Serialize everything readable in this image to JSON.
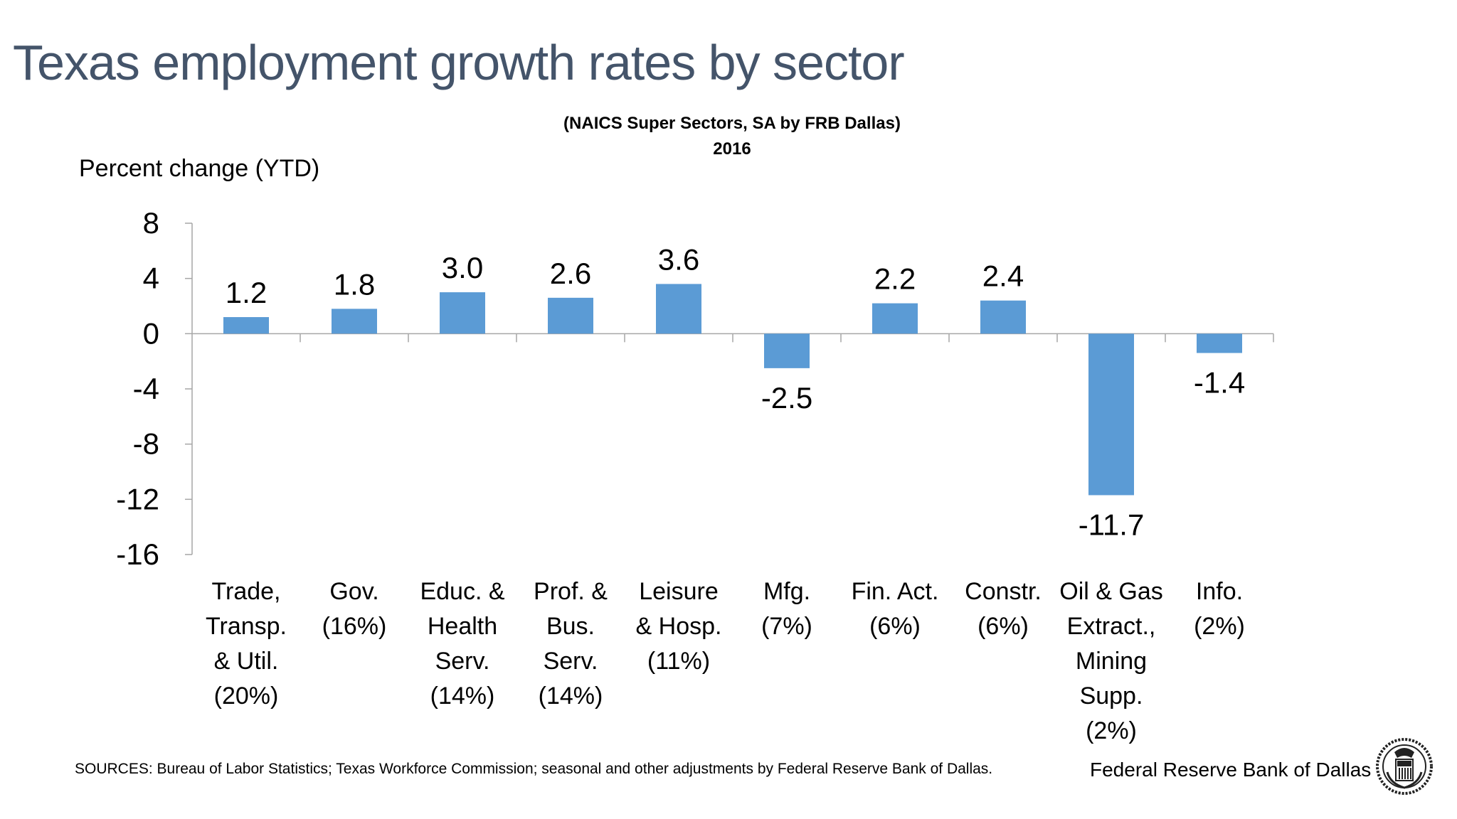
{
  "header": {
    "title": "Texas employment growth rates by sector",
    "subtitle_line1": "(NAICS Super Sectors, SA by FRB Dallas)",
    "subtitle_line2": "2016"
  },
  "chart_data": {
    "type": "bar",
    "ylabel": "Percent change (YTD)",
    "ylim": [
      -16,
      8
    ],
    "yticks": [
      8,
      4,
      0,
      -4,
      -8,
      -12,
      -16
    ],
    "grid": false,
    "legend": "none",
    "bar_color": "#5b9bd5",
    "categories": [
      [
        "Trade,",
        "Transp.",
        "& Util.",
        "(20%)"
      ],
      [
        "Gov.",
        "(16%)"
      ],
      [
        "Educ. &",
        "Health",
        "Serv.",
        "(14%)"
      ],
      [
        "Prof. &",
        "Bus.",
        "Serv.",
        "(14%)"
      ],
      [
        "Leisure",
        "& Hosp.",
        "(11%)"
      ],
      [
        "Mfg.",
        "(7%)"
      ],
      [
        "Fin. Act.",
        "(6%)"
      ],
      [
        "Constr.",
        "(6%)"
      ],
      [
        "Oil & Gas",
        "Extract.,",
        "Mining",
        "Supp.",
        "(2%)"
      ],
      [
        "Info.",
        "(2%)"
      ]
    ],
    "values": [
      1.2,
      1.8,
      3.0,
      2.6,
      3.6,
      -2.5,
      2.2,
      2.4,
      -11.7,
      -1.4
    ],
    "data_labels": [
      "1.2",
      "1.8",
      "3.0",
      "2.6",
      "3.6",
      "-2.5",
      "2.2",
      "2.4",
      "-11.7",
      "-1.4"
    ]
  },
  "footer": {
    "sources": "SOURCES: Bureau of Labor Statistics; Texas Workforce Commission; seasonal and other adjustments by Federal Reserve Bank of Dallas.",
    "org": "Federal Reserve Bank of Dallas"
  }
}
